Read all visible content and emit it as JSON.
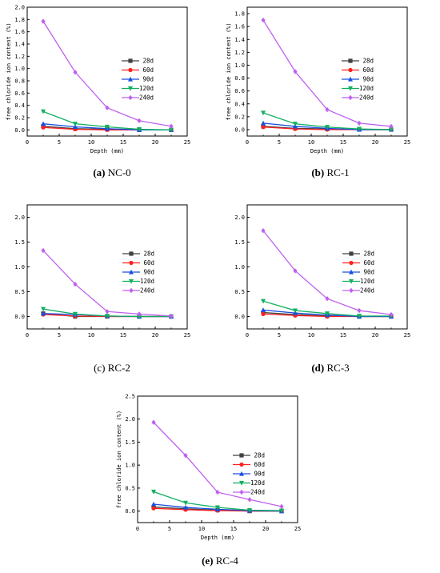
{
  "figure": {
    "captions": [
      {
        "tag": "(a)",
        "name": "NC-0"
      },
      {
        "tag": "(b)",
        "name": "RC-1"
      },
      {
        "tag": "(c)",
        "name": "RC-2"
      },
      {
        "tag": "(d)",
        "name": "RC-3"
      },
      {
        "tag": "(e)",
        "name": "RC-4"
      }
    ]
  },
  "legend_names": [
    "28d",
    "60d",
    "90d",
    "120d",
    "240d"
  ],
  "series_colors": [
    "#404040",
    "#ff2020",
    "#1a4fe0",
    "#10b060",
    "#c060f0"
  ],
  "series_markers": [
    "square",
    "circle",
    "triangle-up",
    "triangle-down",
    "diamond"
  ],
  "chart_data": [
    {
      "type": "line",
      "panel": "NC-0",
      "xlabel": "Depth (mm)",
      "ylabel": "free chloride ion content (%)",
      "xlim": [
        0,
        25
      ],
      "ylim": [
        -0.1,
        2.0
      ],
      "xticks": [
        0,
        5,
        10,
        15,
        20,
        25
      ],
      "yticks": [
        0.0,
        0.2,
        0.4,
        0.6,
        0.8,
        1.0,
        1.2,
        1.4,
        1.6,
        1.8,
        2.0
      ],
      "ytick_decimals": 1,
      "x": [
        2.5,
        7.5,
        12.5,
        17.5,
        22.5
      ],
      "legend": "center-right",
      "series": [
        {
          "name": "28d",
          "values": [
            0.06,
            0.02,
            0.01,
            0.0,
            0.0
          ]
        },
        {
          "name": "60d",
          "values": [
            0.04,
            0.01,
            0.0,
            0.0,
            0.0
          ]
        },
        {
          "name": "90d",
          "values": [
            0.1,
            0.05,
            0.02,
            0.0,
            0.0
          ]
        },
        {
          "name": "120d",
          "values": [
            0.3,
            0.1,
            0.05,
            0.01,
            0.0
          ]
        },
        {
          "name": "240d",
          "values": [
            1.77,
            0.94,
            0.36,
            0.15,
            0.06
          ]
        }
      ]
    },
    {
      "type": "line",
      "panel": "RC-1",
      "xlabel": "Depth (mm)",
      "ylabel": "free chloride ion content (%)",
      "xlim": [
        0,
        25
      ],
      "ylim": [
        -0.1,
        1.9
      ],
      "xticks": [
        0,
        5,
        10,
        15,
        20,
        25
      ],
      "yticks": [
        0.0,
        0.2,
        0.4,
        0.6,
        0.8,
        1.0,
        1.2,
        1.4,
        1.6,
        1.8
      ],
      "ytick_decimals": 1,
      "x": [
        2.5,
        7.5,
        12.5,
        17.5,
        22.5
      ],
      "legend": "center-right",
      "series": [
        {
          "name": "28d",
          "values": [
            0.05,
            0.02,
            0.01,
            0.0,
            0.0
          ]
        },
        {
          "name": "60d",
          "values": [
            0.04,
            0.01,
            0.0,
            0.0,
            0.0
          ]
        },
        {
          "name": "90d",
          "values": [
            0.1,
            0.05,
            0.02,
            0.0,
            0.0
          ]
        },
        {
          "name": "120d",
          "values": [
            0.26,
            0.09,
            0.04,
            0.01,
            0.0
          ]
        },
        {
          "name": "240d",
          "values": [
            1.7,
            0.9,
            0.31,
            0.1,
            0.05
          ]
        }
      ]
    },
    {
      "type": "line",
      "panel": "RC-2",
      "xlabel": "",
      "ylabel": "",
      "xlim": [
        0,
        25
      ],
      "ylim": [
        -0.25,
        2.25
      ],
      "xticks": [
        0,
        5,
        10,
        15,
        20,
        25
      ],
      "yticks": [
        0.0,
        0.5,
        1.0,
        1.5,
        2.0
      ],
      "ytick_decimals": 1,
      "x": [
        2.5,
        7.5,
        12.5,
        17.5,
        22.5
      ],
      "legend": "center-right",
      "series": [
        {
          "name": "28d",
          "values": [
            0.06,
            0.0,
            0.0,
            0.0,
            0.0
          ]
        },
        {
          "name": "60d",
          "values": [
            0.04,
            0.01,
            0.0,
            0.0,
            0.0
          ]
        },
        {
          "name": "90d",
          "values": [
            0.06,
            0.04,
            0.01,
            0.0,
            0.0
          ]
        },
        {
          "name": "120d",
          "values": [
            0.15,
            0.05,
            0.01,
            0.0,
            0.0
          ]
        },
        {
          "name": "240d",
          "values": [
            1.33,
            0.65,
            0.1,
            0.05,
            0.01
          ]
        }
      ]
    },
    {
      "type": "line",
      "panel": "RC-3",
      "xlabel": "",
      "ylabel": "",
      "xlim": [
        0,
        25
      ],
      "ylim": [
        -0.25,
        2.25
      ],
      "xticks": [
        0,
        5,
        10,
        15,
        20,
        25
      ],
      "yticks": [
        0.0,
        0.5,
        1.0,
        1.5,
        2.0
      ],
      "ytick_decimals": 1,
      "x": [
        2.5,
        7.5,
        12.5,
        17.5,
        22.5
      ],
      "legend": "center-right",
      "series": [
        {
          "name": "28d",
          "values": [
            0.08,
            0.04,
            0.01,
            0.0,
            0.0
          ]
        },
        {
          "name": "60d",
          "values": [
            0.05,
            0.02,
            0.0,
            0.0,
            0.0
          ]
        },
        {
          "name": "90d",
          "values": [
            0.13,
            0.07,
            0.03,
            0.0,
            0.0
          ]
        },
        {
          "name": "120d",
          "values": [
            0.31,
            0.12,
            0.06,
            0.01,
            0.01
          ]
        },
        {
          "name": "240d",
          "values": [
            1.73,
            0.92,
            0.36,
            0.12,
            0.04
          ]
        }
      ]
    },
    {
      "type": "line",
      "panel": "RC-4",
      "xlabel": "Depth (mm)",
      "ylabel": "free chloride ion content (%)",
      "xlim": [
        0,
        25
      ],
      "ylim": [
        -0.25,
        2.5
      ],
      "xticks": [
        0,
        5,
        10,
        15,
        20,
        25
      ],
      "yticks": [
        0.0,
        0.5,
        1.0,
        1.5,
        2.0,
        2.5
      ],
      "ytick_decimals": 1,
      "x": [
        2.5,
        7.5,
        12.5,
        17.5,
        22.5
      ],
      "legend": "center-right",
      "series": [
        {
          "name": "28d",
          "values": [
            0.09,
            0.05,
            0.02,
            0.0,
            0.0
          ]
        },
        {
          "name": "60d",
          "values": [
            0.06,
            0.03,
            0.01,
            0.0,
            0.0
          ]
        },
        {
          "name": "90d",
          "values": [
            0.15,
            0.08,
            0.04,
            0.01,
            0.0
          ]
        },
        {
          "name": "120d",
          "values": [
            0.42,
            0.18,
            0.08,
            0.02,
            0.01
          ]
        },
        {
          "name": "240d",
          "values": [
            1.93,
            1.21,
            0.41,
            0.25,
            0.1
          ]
        }
      ]
    }
  ]
}
